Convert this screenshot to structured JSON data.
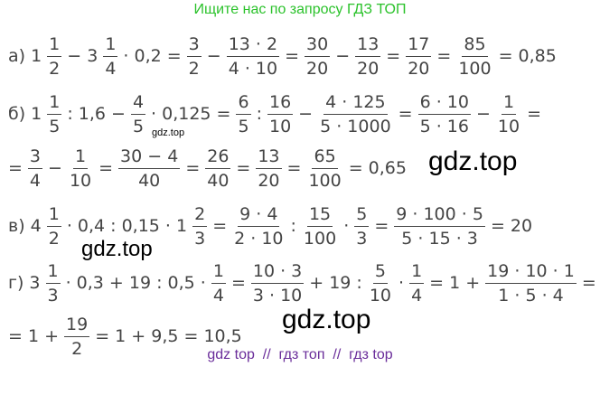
{
  "header": "Ищите нас по запросу ГДЗ ТОП",
  "lines": [
    {
      "label": "а)",
      "items": [
        "1",
        {
          "n": "1",
          "d": "2"
        },
        "− 3",
        {
          "n": "1",
          "d": "4"
        },
        "· 0,2 =",
        {
          "n": "3",
          "d": "2"
        },
        "−",
        {
          "n": "13 · 2",
          "d": "4 · 10"
        },
        "=",
        {
          "n": "30",
          "d": "20"
        },
        "−",
        {
          "n": "13",
          "d": "20"
        },
        "=",
        {
          "n": "17",
          "d": "20"
        },
        "=",
        {
          "n": "85",
          "d": "100"
        },
        "= 0,85"
      ]
    },
    {
      "label": "б)",
      "items": [
        "1",
        {
          "n": "1",
          "d": "5"
        },
        ": 1,6 −",
        {
          "n": "4",
          "d": "5"
        },
        "· 0,125 =",
        {
          "n": "6",
          "d": "5"
        },
        ":",
        {
          "n": "16",
          "d": "10"
        },
        "−",
        {
          "n": "4 · 125",
          "d": "5 · 1000"
        },
        "=",
        {
          "n": "6 · 10",
          "d": "5 · 16"
        },
        "−",
        {
          "n": "1",
          "d": "10"
        },
        "="
      ]
    },
    {
      "items": [
        "=",
        {
          "n": "3",
          "d": "4"
        },
        "−",
        {
          "n": "1",
          "d": "10"
        },
        "=",
        {
          "n": "30 − 4",
          "d": "40"
        },
        "=",
        {
          "n": "26",
          "d": "40"
        },
        "=",
        {
          "n": "13",
          "d": "20"
        },
        "=",
        {
          "n": "65",
          "d": "100"
        },
        "= 0,65"
      ]
    },
    {
      "label": "в)",
      "items": [
        "4",
        {
          "n": "1",
          "d": "2"
        },
        "· 0,4 : 0,15 · 1",
        {
          "n": "2",
          "d": "3"
        },
        "=",
        {
          "n": "9 · 4",
          "d": "2 · 10"
        },
        ":",
        {
          "n": "15",
          "d": "100"
        },
        "·",
        {
          "n": "5",
          "d": "3"
        },
        "=",
        {
          "n": "9 · 100 · 5",
          "d": "5 · 15 · 3"
        },
        "= 20"
      ]
    },
    {
      "label": "г)",
      "items": [
        "3",
        {
          "n": "1",
          "d": "3"
        },
        "· 0,3 + 19 : 0,5 ·",
        {
          "n": "1",
          "d": "4"
        },
        "=",
        {
          "n": "10 · 3",
          "d": "3 · 10"
        },
        "+ 19 :",
        {
          "n": "5",
          "d": "10"
        },
        "·",
        {
          "n": "1",
          "d": "4"
        },
        "= 1 +",
        {
          "n": "19 · 10 · 1",
          "d": "1 · 5 · 4"
        },
        "="
      ]
    },
    {
      "items": [
        "= 1 +",
        {
          "n": "19",
          "d": "2"
        },
        "= 1 + 9,5 = 10,5"
      ]
    }
  ],
  "watermarks": [
    "gdz.top",
    "gdz.top",
    "gdz.top",
    "gdz.top"
  ],
  "footer": "gdz top  //  гдз топ  //  гдз top"
}
